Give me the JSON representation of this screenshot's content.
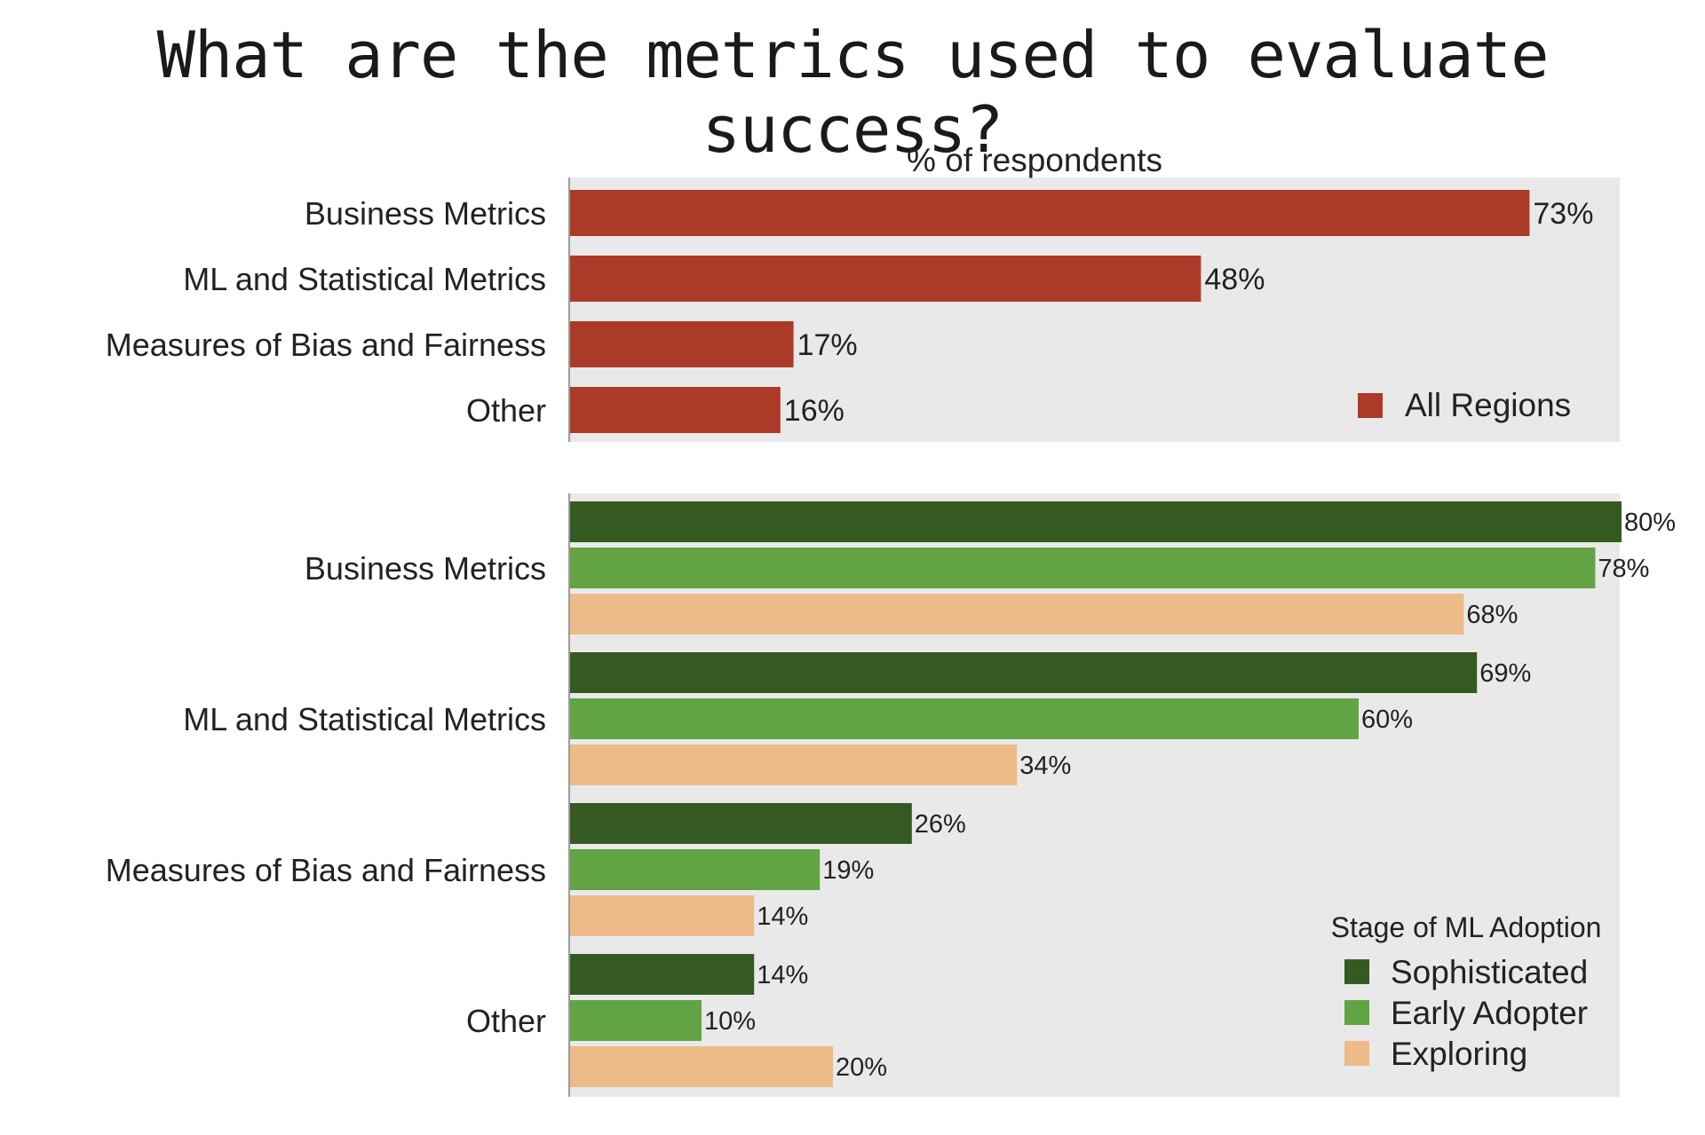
{
  "title": "What are the metrics used to evaluate success?",
  "colors": {
    "panel_bg": "#e9e9e9",
    "all_regions": "#ab3a28",
    "sophisticated": "#345a22",
    "early_adopter": "#62a444",
    "exploring": "#edbb88"
  },
  "chart_data": [
    {
      "type": "bar",
      "orientation": "horizontal",
      "title": "% of respondents",
      "categories": [
        "Business Metrics",
        "ML and Statistical Metrics",
        "Measures of Bias and Fairness",
        "Other"
      ],
      "series": [
        {
          "name": "All Regions",
          "values": [
            73,
            48,
            17,
            16
          ],
          "labels": [
            "73%",
            "48%",
            "17%",
            "16%"
          ]
        }
      ],
      "xlim": [
        0,
        80
      ],
      "grid": false,
      "legend_position": "bottom-right"
    },
    {
      "type": "bar",
      "orientation": "horizontal",
      "categories": [
        "Business Metrics",
        "ML and Statistical Metrics",
        "Measures of Bias and Fairness",
        "Other"
      ],
      "legend_title": "Stage of ML Adoption",
      "series": [
        {
          "name": "Sophisticated",
          "values": [
            80,
            69,
            26,
            14
          ],
          "labels": [
            "80%",
            "69%",
            "26%",
            "14%"
          ]
        },
        {
          "name": "Early Adopter",
          "values": [
            78,
            60,
            19,
            10
          ],
          "labels": [
            "78%",
            "60%",
            "19%",
            "10%"
          ]
        },
        {
          "name": "Exploring",
          "values": [
            68,
            34,
            14,
            20
          ],
          "labels": [
            "68%",
            "34%",
            "14%",
            "20%"
          ]
        }
      ],
      "xlim": [
        0,
        80
      ],
      "grid": false,
      "legend_position": "bottom-right"
    }
  ]
}
